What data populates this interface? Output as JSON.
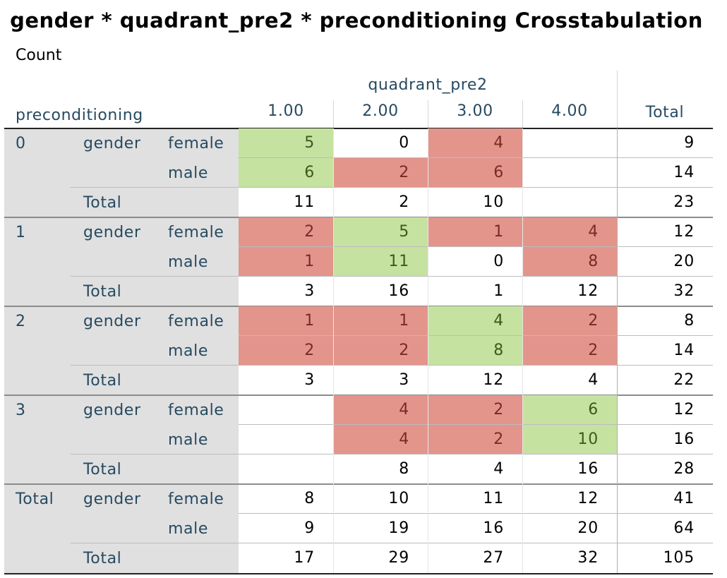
{
  "title": "gender * quadrant_pre2 * preconditioning Crosstabulation",
  "subtitle": "Count",
  "column_group_label": "quadrant_pre2",
  "row_group_label": "preconditioning",
  "columns": [
    "1.00",
    "2.00",
    "3.00",
    "4.00",
    "Total"
  ],
  "row_var_label": "gender",
  "total_label": "Total",
  "groups": [
    {
      "label": "0",
      "rows": [
        {
          "label": "female",
          "values": [
            "5",
            "0",
            "4",
            "",
            "9"
          ],
          "colors": [
            "green",
            "",
            "red",
            "",
            ""
          ]
        },
        {
          "label": "male",
          "values": [
            "6",
            "2",
            "6",
            "",
            "14"
          ],
          "colors": [
            "green",
            "red",
            "red",
            "",
            ""
          ]
        },
        {
          "label": "Total",
          "values": [
            "11",
            "2",
            "10",
            "",
            "23"
          ],
          "colors": [
            "",
            "",
            "",
            "",
            ""
          ]
        }
      ]
    },
    {
      "label": "1",
      "rows": [
        {
          "label": "female",
          "values": [
            "2",
            "5",
            "1",
            "4",
            "12"
          ],
          "colors": [
            "red",
            "green",
            "red",
            "red",
            ""
          ]
        },
        {
          "label": "male",
          "values": [
            "1",
            "11",
            "0",
            "8",
            "20"
          ],
          "colors": [
            "red",
            "green",
            "",
            "red",
            ""
          ]
        },
        {
          "label": "Total",
          "values": [
            "3",
            "16",
            "1",
            "12",
            "32"
          ],
          "colors": [
            "",
            "",
            "",
            "",
            ""
          ]
        }
      ]
    },
    {
      "label": "2",
      "rows": [
        {
          "label": "female",
          "values": [
            "1",
            "1",
            "4",
            "2",
            "8"
          ],
          "colors": [
            "red",
            "red",
            "green",
            "red",
            ""
          ]
        },
        {
          "label": "male",
          "values": [
            "2",
            "2",
            "8",
            "2",
            "14"
          ],
          "colors": [
            "red",
            "red",
            "green",
            "red",
            ""
          ]
        },
        {
          "label": "Total",
          "values": [
            "3",
            "3",
            "12",
            "4",
            "22"
          ],
          "colors": [
            "",
            "",
            "",
            "",
            ""
          ]
        }
      ]
    },
    {
      "label": "3",
      "rows": [
        {
          "label": "female",
          "values": [
            "",
            "4",
            "2",
            "6",
            "12"
          ],
          "colors": [
            "",
            "red",
            "red",
            "green",
            ""
          ]
        },
        {
          "label": "male",
          "values": [
            "",
            "4",
            "2",
            "10",
            "16"
          ],
          "colors": [
            "",
            "red",
            "red",
            "green",
            ""
          ]
        },
        {
          "label": "Total",
          "values": [
            "",
            "8",
            "4",
            "16",
            "28"
          ],
          "colors": [
            "",
            "",
            "",
            "",
            ""
          ]
        }
      ]
    },
    {
      "label": "Total",
      "rows": [
        {
          "label": "female",
          "values": [
            "8",
            "10",
            "11",
            "12",
            "41"
          ],
          "colors": [
            "",
            "",
            "",
            "",
            ""
          ]
        },
        {
          "label": "male",
          "values": [
            "9",
            "19",
            "16",
            "20",
            "64"
          ],
          "colors": [
            "",
            "",
            "",
            "",
            ""
          ]
        },
        {
          "label": "Total",
          "values": [
            "17",
            "29",
            "27",
            "32",
            "105"
          ],
          "colors": [
            "",
            "",
            "",
            "",
            ""
          ]
        }
      ]
    }
  ],
  "colors": {
    "green": "#c6e2a0",
    "red": "#e3958c",
    "header_text": "#264a60",
    "label_panel": "#e0e0e0"
  }
}
